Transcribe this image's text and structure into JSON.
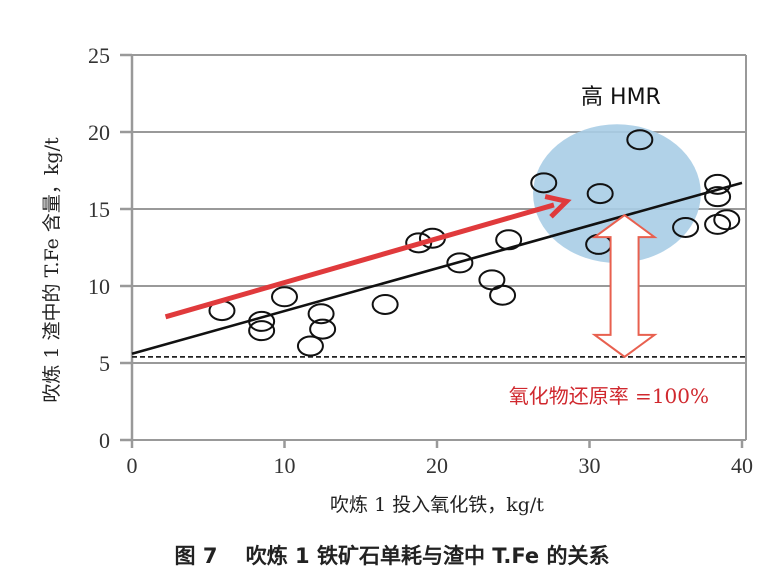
{
  "chart_data": {
    "type": "scatter",
    "title": "",
    "caption": "图 7　 吹炼 1 铁矿石单耗与渣中 T.Fe 的关系",
    "xlabel": "吹炼 1 投入氧化铁，kg/t",
    "ylabel": "吹炼 1 渣中的 T.Fe 含量，kg/t",
    "xlim": [
      0,
      40
    ],
    "ylim": [
      0,
      25
    ],
    "xticks": [
      "0",
      "10",
      "20",
      "30",
      "40"
    ],
    "yticks": [
      "0",
      "5",
      "10",
      "15",
      "20",
      "25"
    ],
    "grid": "horizontal",
    "points": [
      [
        5.9,
        8.4
      ],
      [
        8.5,
        7.7
      ],
      [
        8.5,
        7.1
      ],
      [
        10.0,
        9.3
      ],
      [
        11.7,
        6.1
      ],
      [
        12.4,
        8.2
      ],
      [
        12.5,
        7.2
      ],
      [
        16.6,
        8.8
      ],
      [
        18.8,
        12.8
      ],
      [
        19.7,
        13.1
      ],
      [
        21.5,
        11.5
      ],
      [
        23.6,
        10.4
      ],
      [
        24.3,
        9.4
      ],
      [
        24.7,
        13.0
      ],
      [
        27.0,
        16.7
      ],
      [
        30.6,
        12.7
      ],
      [
        30.7,
        16.0
      ],
      [
        33.3,
        19.5
      ],
      [
        36.3,
        13.8
      ],
      [
        38.4,
        16.6
      ],
      [
        38.4,
        15.8
      ],
      [
        38.4,
        14.0
      ],
      [
        39.0,
        14.3
      ]
    ],
    "trend_line": {
      "x": [
        0,
        40
      ],
      "y": [
        5.6,
        16.7
      ]
    },
    "reference_line": {
      "y": 5.4,
      "label": "氧化物还原率 =100%"
    },
    "trend_arrow": {
      "from": [
        2.2,
        8.0
      ],
      "to": [
        28.5,
        15.5
      ]
    },
    "highlight_region": {
      "label": "高 HMR",
      "center": [
        31.8,
        16.0
      ],
      "radius_x": 5.5,
      "radius_y": 4.5
    },
    "double_arrow": {
      "x": 32.3,
      "y": [
        5.4,
        14.6
      ]
    },
    "colors": {
      "points": "#111111",
      "trend": "#111111",
      "arrow": "#e03a3c",
      "region": "#a8cde6",
      "grid": "#999999"
    }
  }
}
